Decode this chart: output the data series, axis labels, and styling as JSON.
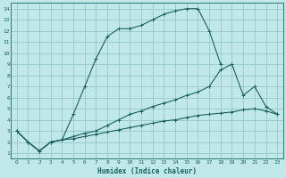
{
  "xlabel": "Humidex (Indice chaleur)",
  "bg_color": "#c0e8e8",
  "grid_color": "#90c0c0",
  "line_color": "#1a6060",
  "xlim": [
    -0.5,
    23.5
  ],
  "ylim": [
    0.5,
    14.5
  ],
  "xticks": [
    0,
    1,
    2,
    3,
    4,
    5,
    6,
    7,
    8,
    9,
    10,
    11,
    12,
    13,
    14,
    15,
    16,
    17,
    18,
    19,
    20,
    21,
    22,
    23
  ],
  "yticks": [
    1,
    2,
    3,
    4,
    5,
    6,
    7,
    8,
    9,
    10,
    11,
    12,
    13,
    14
  ],
  "series": [
    {
      "x": [
        0,
        1,
        2,
        3,
        4,
        5,
        6,
        7,
        8,
        9,
        10,
        11,
        12,
        13,
        14,
        15,
        16,
        17,
        18
      ],
      "y": [
        3.0,
        2.0,
        1.2,
        2.0,
        2.2,
        4.5,
        7.0,
        9.5,
        11.5,
        12.2,
        12.2,
        12.5,
        13.0,
        13.5,
        13.8,
        14.0,
        14.0,
        12.0,
        9.0
      ]
    },
    {
      "x": [
        0,
        1,
        2,
        3,
        4,
        5,
        6,
        7,
        8,
        9,
        10,
        11,
        12,
        13,
        14,
        15,
        16,
        17,
        18,
        19,
        20,
        21,
        22,
        23
      ],
      "y": [
        3.0,
        2.0,
        1.2,
        2.0,
        2.2,
        2.5,
        2.8,
        3.0,
        3.5,
        4.0,
        4.5,
        4.8,
        5.2,
        5.5,
        5.8,
        6.2,
        6.5,
        7.0,
        8.5,
        9.0,
        6.2,
        7.0,
        5.2,
        4.5
      ]
    },
    {
      "x": [
        0,
        1,
        2,
        3,
        4,
        5,
        6,
        7,
        8,
        9,
        10,
        11,
        12,
        13,
        14,
        15,
        16,
        17,
        18,
        19,
        20,
        21,
        22,
        23
      ],
      "y": [
        3.0,
        2.0,
        1.2,
        2.0,
        2.2,
        2.3,
        2.5,
        2.7,
        2.9,
        3.1,
        3.3,
        3.5,
        3.7,
        3.9,
        4.0,
        4.2,
        4.4,
        4.5,
        4.6,
        4.7,
        4.9,
        5.0,
        4.8,
        4.5
      ]
    }
  ]
}
